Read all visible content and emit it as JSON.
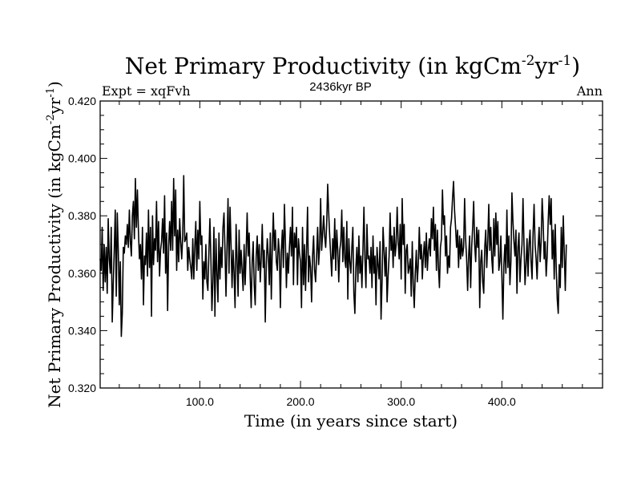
{
  "chart_data": {
    "type": "line",
    "title": "Net Primary Productivity (in kgCm",
    "title_sup1": "-2",
    "title_mid": "yr",
    "title_sup2": "-1",
    "title_end": ")",
    "subtitle": "2436kyr BP",
    "left_label": "Expt = xqFvh",
    "right_label": "Ann",
    "xlabel": "Time (in years since start)",
    "ylabel": "Net Primary Productivity (in kgCm",
    "ylabel_sup1": "-2",
    "ylabel_mid": "yr",
    "ylabel_sup2": "-1",
    "ylabel_end": ")",
    "xlim": [
      1,
      500
    ],
    "ylim": [
      0.32,
      0.42
    ],
    "xticks": [
      100,
      200,
      300,
      400
    ],
    "xtick_labels": [
      "100.0",
      "200.0",
      "300.0",
      "400.0"
    ],
    "yticks": [
      0.32,
      0.34,
      0.36,
      0.38,
      0.4,
      0.42
    ],
    "ytick_labels": [
      "0.320",
      "0.340",
      "0.360",
      "0.380",
      "0.400",
      "0.420"
    ],
    "series": [
      {
        "name": "Net Primary Productivity",
        "color": "#000000",
        "x_start": 1,
        "x_step": 1,
        "values": [
          0.365,
          0.361,
          0.376,
          0.354,
          0.37,
          0.357,
          0.369,
          0.353,
          0.379,
          0.365,
          0.36,
          0.376,
          0.343,
          0.356,
          0.368,
          0.382,
          0.352,
          0.381,
          0.368,
          0.349,
          0.364,
          0.338,
          0.346,
          0.369,
          0.367,
          0.373,
          0.37,
          0.377,
          0.369,
          0.382,
          0.371,
          0.366,
          0.38,
          0.385,
          0.372,
          0.393,
          0.376,
          0.389,
          0.375,
          0.365,
          0.37,
          0.358,
          0.376,
          0.349,
          0.366,
          0.363,
          0.374,
          0.359,
          0.382,
          0.362,
          0.376,
          0.345,
          0.38,
          0.363,
          0.372,
          0.368,
          0.385,
          0.364,
          0.378,
          0.359,
          0.368,
          0.371,
          0.379,
          0.367,
          0.387,
          0.36,
          0.374,
          0.347,
          0.369,
          0.378,
          0.368,
          0.385,
          0.368,
          0.393,
          0.373,
          0.389,
          0.361,
          0.375,
          0.364,
          0.379,
          0.371,
          0.365,
          0.373,
          0.394,
          0.371,
          0.372,
          0.374,
          0.361,
          0.369,
          0.365,
          0.362,
          0.358,
          0.372,
          0.358,
          0.369,
          0.378,
          0.361,
          0.375,
          0.365,
          0.385,
          0.37,
          0.373,
          0.351,
          0.364,
          0.358,
          0.37,
          0.357,
          0.354,
          0.367,
          0.379,
          0.365,
          0.347,
          0.357,
          0.376,
          0.345,
          0.372,
          0.36,
          0.35,
          0.374,
          0.358,
          0.369,
          0.362,
          0.376,
          0.381,
          0.368,
          0.352,
          0.369,
          0.386,
          0.36,
          0.383,
          0.37,
          0.355,
          0.368,
          0.36,
          0.348,
          0.377,
          0.365,
          0.352,
          0.375,
          0.36,
          0.368,
          0.361,
          0.354,
          0.37,
          0.356,
          0.367,
          0.381,
          0.366,
          0.374,
          0.359,
          0.348,
          0.364,
          0.371,
          0.356,
          0.349,
          0.366,
          0.373,
          0.361,
          0.37,
          0.357,
          0.365,
          0.377,
          0.362,
          0.368,
          0.343,
          0.363,
          0.372,
          0.366,
          0.356,
          0.374,
          0.351,
          0.369,
          0.381,
          0.368,
          0.375,
          0.364,
          0.361,
          0.372,
          0.367,
          0.348,
          0.368,
          0.375,
          0.362,
          0.384,
          0.371,
          0.355,
          0.367,
          0.36,
          0.369,
          0.376,
          0.366,
          0.383,
          0.356,
          0.374,
          0.369,
          0.376,
          0.356,
          0.372,
          0.367,
          0.364,
          0.348,
          0.376,
          0.356,
          0.37,
          0.354,
          0.368,
          0.383,
          0.357,
          0.366,
          0.362,
          0.35,
          0.366,
          0.373,
          0.361,
          0.357,
          0.366,
          0.376,
          0.363,
          0.369,
          0.386,
          0.368,
          0.374,
          0.38,
          0.373,
          0.369,
          0.377,
          0.391,
          0.381,
          0.373,
          0.366,
          0.359,
          0.372,
          0.365,
          0.379,
          0.361,
          0.375,
          0.368,
          0.357,
          0.368,
          0.371,
          0.382,
          0.364,
          0.376,
          0.365,
          0.362,
          0.378,
          0.351,
          0.372,
          0.364,
          0.36,
          0.369,
          0.376,
          0.353,
          0.346,
          0.362,
          0.369,
          0.357,
          0.373,
          0.36,
          0.366,
          0.355,
          0.368,
          0.383,
          0.365,
          0.355,
          0.377,
          0.365,
          0.366,
          0.36,
          0.369,
          0.355,
          0.373,
          0.36,
          0.366,
          0.349,
          0.369,
          0.363,
          0.358,
          0.371,
          0.344,
          0.357,
          0.376,
          0.368,
          0.359,
          0.369,
          0.35,
          0.359,
          0.366,
          0.381,
          0.368,
          0.373,
          0.362,
          0.376,
          0.366,
          0.37,
          0.383,
          0.371,
          0.365,
          0.377,
          0.358,
          0.386,
          0.37,
          0.377,
          0.353,
          0.368,
          0.37,
          0.36,
          0.362,
          0.365,
          0.352,
          0.371,
          0.356,
          0.348,
          0.36,
          0.368,
          0.357,
          0.363,
          0.376,
          0.365,
          0.37,
          0.358,
          0.366,
          0.371,
          0.362,
          0.374,
          0.361,
          0.368,
          0.372,
          0.366,
          0.379,
          0.372,
          0.383,
          0.368,
          0.377,
          0.361,
          0.375,
          0.362,
          0.355,
          0.369,
          0.372,
          0.389,
          0.377,
          0.38,
          0.366,
          0.373,
          0.36,
          0.366,
          0.362,
          0.376,
          0.379,
          0.386,
          0.392,
          0.382,
          0.376,
          0.369,
          0.375,
          0.362,
          0.373,
          0.365,
          0.372,
          0.366,
          0.369,
          0.386,
          0.372,
          0.365,
          0.354,
          0.366,
          0.373,
          0.355,
          0.369,
          0.376,
          0.385,
          0.37,
          0.364,
          0.376,
          0.369,
          0.375,
          0.348,
          0.364,
          0.368,
          0.357,
          0.353,
          0.369,
          0.375,
          0.362,
          0.371,
          0.384,
          0.368,
          0.376,
          0.365,
          0.36,
          0.379,
          0.366,
          0.381,
          0.37,
          0.378,
          0.361,
          0.364,
          0.373,
          0.359,
          0.344,
          0.363,
          0.37,
          0.36,
          0.382,
          0.362,
          0.373,
          0.356,
          0.364,
          0.388,
          0.378,
          0.371,
          0.366,
          0.375,
          0.353,
          0.369,
          0.374,
          0.357,
          0.365,
          0.37,
          0.386,
          0.37,
          0.356,
          0.363,
          0.372,
          0.359,
          0.37,
          0.375,
          0.364,
          0.358,
          0.374,
          0.384,
          0.37,
          0.365,
          0.358,
          0.369,
          0.376,
          0.364,
          0.371,
          0.386,
          0.378,
          0.365,
          0.371,
          0.359,
          0.366,
          0.378,
          0.387,
          0.377,
          0.386,
          0.365,
          0.375,
          0.358,
          0.377,
          0.362,
          0.351,
          0.346,
          0.363,
          0.355,
          0.376,
          0.362,
          0.38,
          0.367,
          0.354,
          0.37
        ]
      }
    ]
  }
}
